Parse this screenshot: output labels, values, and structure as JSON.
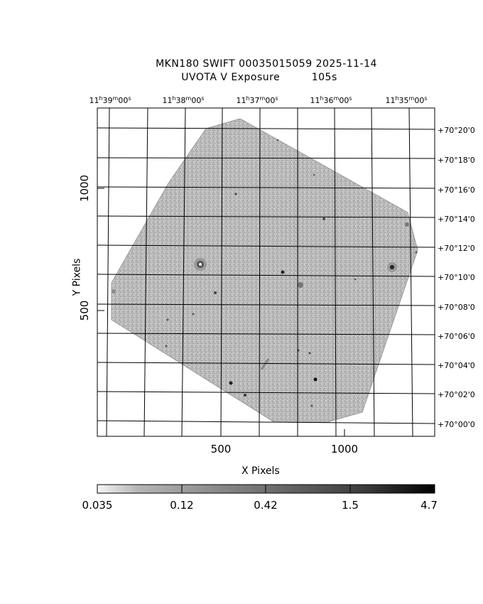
{
  "title": {
    "line1": "MKN180 SWIFT 00035015059 2025-11-14",
    "line2": "UVOTA V Exposure         105s"
  },
  "axes": {
    "xlabel": "X Pixels",
    "ylabel": "Y Pixels",
    "x_ticks": [
      "500",
      "1000"
    ],
    "y_ticks": [
      "500",
      "1000"
    ]
  },
  "ra_labels": [
    {
      "h": "11",
      "m": "39",
      "s": "00"
    },
    {
      "h": "11",
      "m": "38",
      "s": "00"
    },
    {
      "h": "11",
      "m": "37",
      "s": "00"
    },
    {
      "h": "11",
      "m": "36",
      "s": "00"
    },
    {
      "h": "11",
      "m": "35",
      "s": "00"
    }
  ],
  "dec_labels": [
    "+70°20'0",
    "+70°18'0",
    "+70°16'0",
    "+70°14'0",
    "+70°12'0",
    "+70°10'0",
    "+70°08'0",
    "+70°06'0",
    "+70°04'0",
    "+70°02'0",
    "+70°00'0"
  ],
  "colorbar": {
    "ticks": [
      "0.035",
      "0.12",
      "0.42",
      "1.5",
      "4.7"
    ]
  }
}
